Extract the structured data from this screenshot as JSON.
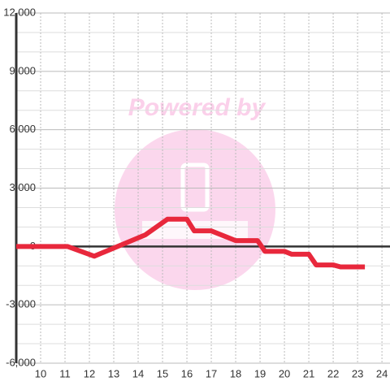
{
  "chart_data": {
    "type": "line",
    "watermark": "Powered by",
    "x": [
      9,
      11.1,
      12.2,
      14.3,
      15.2,
      16,
      16.3,
      17,
      18,
      18.9,
      19.2,
      20,
      20.3,
      21,
      21.3,
      22,
      22.3,
      23.3
    ],
    "series": [
      {
        "color": "#e8283c",
        "values": [
          0,
          0,
          -500,
          600,
          1400,
          1400,
          800,
          800,
          300,
          300,
          -250,
          -250,
          -400,
          -400,
          -950,
          -950,
          -1050,
          -1050
        ]
      }
    ],
    "xlim": [
      9,
      24.33
    ],
    "xticks": [
      10,
      11,
      12,
      13,
      14,
      15,
      16,
      17,
      18,
      19,
      20,
      21,
      22,
      23,
      24
    ],
    "ylim": [
      -6000,
      12000
    ],
    "yticks": [
      {
        "value": -6000,
        "label": "-6,000"
      },
      {
        "value": -3000,
        "label": "-3,000"
      },
      0,
      {
        "value": 3000,
        "label": "3,000"
      },
      {
        "value": 6000,
        "label": "6,000"
      },
      {
        "value": 9000,
        "label": "9,000"
      },
      {
        "value": 12000,
        "label": "12,000"
      }
    ],
    "y_minor_ticks": [
      -5000,
      -4000,
      -2000,
      -1000,
      1000,
      2000,
      4000,
      5000,
      7000,
      8000,
      10000,
      11000
    ],
    "grid": true
  }
}
